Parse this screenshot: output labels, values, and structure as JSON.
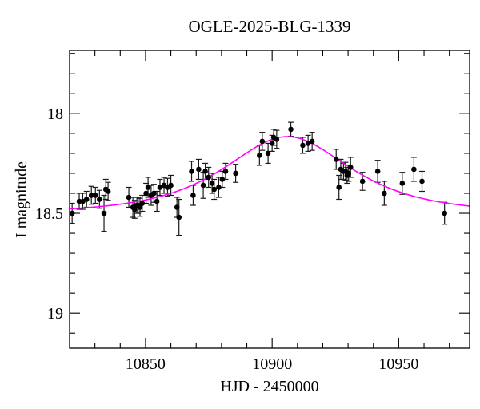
{
  "chart_data": {
    "type": "scatter",
    "title": "OGLE-2025-BLG-1339",
    "xlabel": "HJD - 2450000",
    "ylabel": "I magnitude",
    "layout": {
      "x_min": 10820,
      "x_max": 10978,
      "y_top_mag": 17.685,
      "y_bottom_mag": 19.175,
      "y_axis_inverted": true,
      "grid": false,
      "ticks_mirrored_all_sides": true
    },
    "x_major_ticks": [
      10850,
      10900,
      10950
    ],
    "x_major_tick_labels": [
      "10850",
      "10900",
      "10950"
    ],
    "x_minor_tick_step": 10,
    "y_major_ticks": [
      18,
      18.5,
      19
    ],
    "y_major_tick_labels": [
      "18",
      "18.5",
      "19"
    ],
    "y_minor_tick_step": 0.1,
    "colors": {
      "model_curve": "#ff00ff",
      "data_points": "#000000",
      "error_bars": "#1a1a1a",
      "frame": "#000000",
      "background": "#ffffff"
    },
    "model_curve": {
      "kind": "paczynski_microlensing",
      "baseline_mag": 18.5,
      "t0": 10906,
      "tE": 32,
      "u0": 0.9,
      "peak_mag": 18.12
    },
    "points_format": [
      "hjd_minus_2450000",
      "I_mag",
      "err_mag"
    ],
    "points": [
      [
        10821.0,
        18.5,
        0.05
      ],
      [
        10823.8,
        18.44,
        0.04
      ],
      [
        10825.2,
        18.44,
        0.04
      ],
      [
        10826.7,
        18.43,
        0.04
      ],
      [
        10828.6,
        18.41,
        0.045
      ],
      [
        10830.2,
        18.41,
        0.04
      ],
      [
        10831.8,
        18.43,
        0.045
      ],
      [
        10833.6,
        18.5,
        0.09
      ],
      [
        10834.3,
        18.38,
        0.05
      ],
      [
        10835.2,
        18.39,
        0.045
      ],
      [
        10843.4,
        18.42,
        0.05
      ],
      [
        10845.0,
        18.47,
        0.05
      ],
      [
        10845.7,
        18.48,
        0.045
      ],
      [
        10846.6,
        18.46,
        0.04
      ],
      [
        10847.1,
        18.46,
        0.04
      ],
      [
        10847.8,
        18.47,
        0.045
      ],
      [
        10848.7,
        18.45,
        0.04
      ],
      [
        10850.2,
        18.4,
        0.05
      ],
      [
        10851.0,
        18.37,
        0.05
      ],
      [
        10852.2,
        18.41,
        0.05
      ],
      [
        10853.3,
        18.4,
        0.045
      ],
      [
        10854.5,
        18.44,
        0.05
      ],
      [
        10855.7,
        18.37,
        0.04
      ],
      [
        10857.3,
        18.36,
        0.04
      ],
      [
        10858.7,
        18.37,
        0.045
      ],
      [
        10860.0,
        18.36,
        0.05
      ],
      [
        10862.4,
        18.47,
        0.05
      ],
      [
        10863.2,
        18.52,
        0.09
      ],
      [
        10868.2,
        18.29,
        0.05
      ],
      [
        10868.8,
        18.41,
        0.05
      ],
      [
        10871.0,
        18.28,
        0.05
      ],
      [
        10872.8,
        18.36,
        0.065
      ],
      [
        10873.6,
        18.29,
        0.04
      ],
      [
        10874.9,
        18.32,
        0.05
      ],
      [
        10876.3,
        18.35,
        0.05
      ],
      [
        10877.1,
        18.38,
        0.05
      ],
      [
        10878.9,
        18.37,
        0.05
      ],
      [
        10880.3,
        18.33,
        0.04
      ],
      [
        10881.6,
        18.29,
        0.04
      ],
      [
        10885.6,
        18.3,
        0.045
      ],
      [
        10895.0,
        18.21,
        0.05
      ],
      [
        10896.1,
        18.14,
        0.045
      ],
      [
        10898.4,
        18.2,
        0.05
      ],
      [
        10900.0,
        18.15,
        0.04
      ],
      [
        10900.6,
        18.12,
        0.04
      ],
      [
        10901.8,
        18.13,
        0.045
      ],
      [
        10907.4,
        18.08,
        0.035
      ],
      [
        10912.1,
        18.16,
        0.04
      ],
      [
        10914.2,
        18.15,
        0.04
      ],
      [
        10915.8,
        18.14,
        0.045
      ],
      [
        10925.3,
        18.23,
        0.05
      ],
      [
        10926.4,
        18.37,
        0.06
      ],
      [
        10927.1,
        18.28,
        0.05
      ],
      [
        10928.2,
        18.29,
        0.04
      ],
      [
        10929.0,
        18.29,
        0.045
      ],
      [
        10929.6,
        18.31,
        0.04
      ],
      [
        10930.2,
        18.3,
        0.04
      ],
      [
        10931.0,
        18.27,
        0.05
      ],
      [
        10935.7,
        18.34,
        0.045
      ],
      [
        10941.7,
        18.29,
        0.055
      ],
      [
        10944.3,
        18.4,
        0.06
      ],
      [
        10951.4,
        18.35,
        0.055
      ],
      [
        10956.0,
        18.28,
        0.06
      ],
      [
        10959.2,
        18.34,
        0.05
      ],
      [
        10968.1,
        18.5,
        0.055
      ]
    ]
  }
}
